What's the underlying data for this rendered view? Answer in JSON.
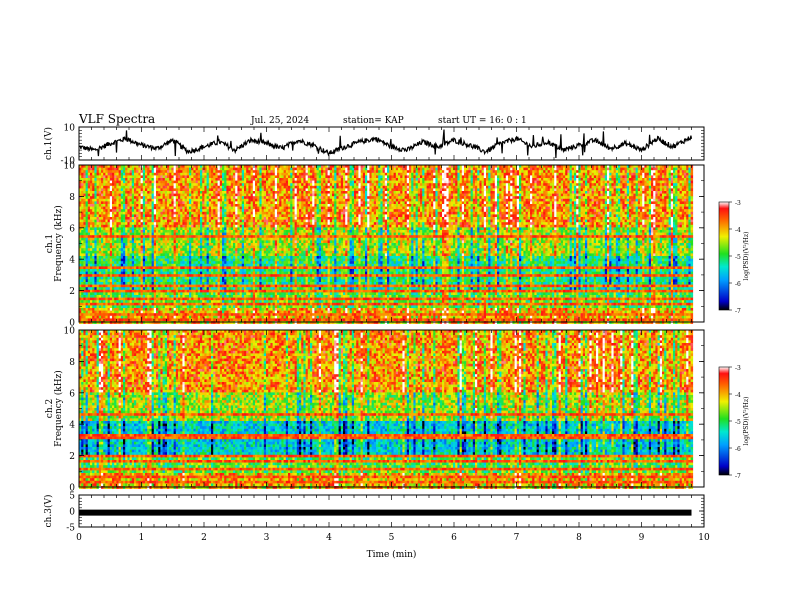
{
  "header": {
    "title": "VLF Spectra",
    "date": "Jul. 25, 2024",
    "station": "station= KAP",
    "start": "start UT = 16: 0 : 1"
  },
  "chart_data": [
    {
      "type": "line",
      "ylabel": "ch.1(V)",
      "xlim": [
        0,
        10
      ],
      "ylim": [
        -10,
        10
      ],
      "yticks": [
        "10",
        "-10"
      ],
      "series": [
        {
          "x": [
            0,
            0.25,
            0.5,
            0.75,
            1.0,
            1.25,
            1.5,
            1.75,
            2.0,
            2.25,
            2.5,
            2.75,
            3.0,
            3.25,
            3.5,
            3.75,
            4.0,
            4.25,
            4.5,
            4.75,
            5.0,
            5.25,
            5.5,
            5.75,
            6.0,
            6.25,
            6.5,
            6.75,
            7.0,
            7.25,
            7.5,
            7.75,
            8.0,
            8.25,
            8.5,
            8.75,
            9.0,
            9.25,
            9.5,
            9.8
          ],
          "y": [
            -2,
            -4,
            0,
            3,
            -1,
            -3,
            2,
            -5,
            -2,
            1,
            -4,
            2,
            0,
            -3,
            2,
            -1,
            -6,
            -2,
            1,
            3,
            -2,
            -4,
            1,
            -2,
            2,
            -1,
            -5,
            0,
            3,
            -2,
            1,
            -4,
            -1,
            2,
            -3,
            0,
            -4,
            3,
            -2,
            4
          ]
        }
      ]
    },
    {
      "type": "heatmap",
      "ylabel": "ch.1 Frequency (kHz)",
      "xlim": [
        0,
        10
      ],
      "ylim": [
        0,
        10
      ],
      "yticks": [
        "0",
        "2",
        "4",
        "6",
        "8",
        "10"
      ],
      "colorbar": {
        "label": "log(PSD)(V²/Hz)",
        "range": [
          -7,
          -3
        ],
        "ticks": [
          "-3",
          "-4",
          "-5",
          "-6",
          "-7"
        ]
      }
    },
    {
      "type": "heatmap",
      "ylabel": "ch.2 Frequency (kHz)",
      "xlim": [
        0,
        10
      ],
      "ylim": [
        0,
        10
      ],
      "yticks": [
        "0",
        "2",
        "4",
        "6",
        "8",
        "10"
      ],
      "colorbar": {
        "label": "log(PSD)(V²/Hz)",
        "range": [
          -7,
          -3
        ],
        "ticks": [
          "-3",
          "-4",
          "-5",
          "-6",
          "-7"
        ]
      }
    },
    {
      "type": "line",
      "ylabel": "ch.3(V)",
      "xlim": [
        0,
        10
      ],
      "ylim": [
        -5,
        5
      ],
      "yticks": [
        "5",
        "0",
        "-5"
      ],
      "series": [
        {
          "x": [
            0,
            9.8
          ],
          "y": [
            -0.5,
            -0.5
          ]
        }
      ],
      "xlabel": "Time (min)",
      "xticks": [
        "0",
        "1",
        "2",
        "3",
        "4",
        "5",
        "6",
        "7",
        "8",
        "9",
        "10"
      ]
    }
  ]
}
